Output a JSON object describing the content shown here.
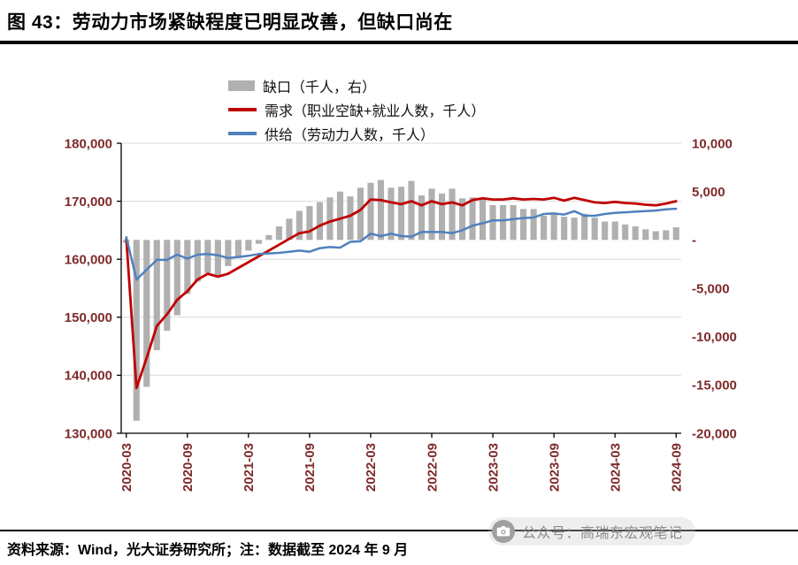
{
  "title": "图 43：劳动力市场紧缺程度已明显改善，但缺口尚在",
  "footer": {
    "source_note": "资料来源：Wind，光大证券研究所；注：数据截至 2024 年 9 月"
  },
  "watermark": {
    "icon": "camera-icon",
    "text": "公众号：高瑞东宏观笔记"
  },
  "colors": {
    "bar": "#b0b0b0",
    "demand": "#c00000",
    "supply": "#4f81bd",
    "gridline": "#d9d9d9",
    "axis_line": "#000000",
    "axis_label": "#7f2a2a"
  },
  "chart_data": {
    "type": "bar+line combo",
    "title": "图 43：劳动力市场紧缺程度已明显改善，但缺口尚在",
    "legend_position": "top",
    "grid": "horizontal",
    "x": [
      "2020-03",
      "2020-04",
      "2020-05",
      "2020-06",
      "2020-07",
      "2020-08",
      "2020-09",
      "2020-10",
      "2020-11",
      "2020-12",
      "2021-01",
      "2021-02",
      "2021-03",
      "2021-04",
      "2021-05",
      "2021-06",
      "2021-07",
      "2021-08",
      "2021-09",
      "2021-10",
      "2021-11",
      "2021-12",
      "2022-01",
      "2022-02",
      "2022-03",
      "2022-04",
      "2022-05",
      "2022-06",
      "2022-07",
      "2022-08",
      "2022-09",
      "2022-10",
      "2022-11",
      "2022-12",
      "2023-01",
      "2023-02",
      "2023-03",
      "2023-04",
      "2023-05",
      "2023-06",
      "2023-07",
      "2023-08",
      "2023-09",
      "2023-10",
      "2023-11",
      "2023-12",
      "2024-01",
      "2024-02",
      "2024-03",
      "2024-04",
      "2024-05",
      "2024-06",
      "2024-07",
      "2024-08",
      "2024-09"
    ],
    "x_tick_labels": [
      "2020-03",
      "2020-09",
      "2021-03",
      "2021-09",
      "2022-03",
      "2022-09",
      "2023-03",
      "2023-09",
      "2024-03",
      "2024-09"
    ],
    "x_tick_every": 6,
    "left_axis": {
      "min": 130000,
      "max": 180000,
      "step": 10000,
      "tick_values": [
        130000,
        140000,
        150000,
        160000,
        170000,
        180000
      ],
      "tick_labels": [
        "130,000",
        "140,000",
        "150,000",
        "160,000",
        "170,000",
        "180,000"
      ]
    },
    "right_axis": {
      "min": -20000,
      "max": 10000,
      "step": 5000,
      "tick_values": [
        10000,
        5000,
        0,
        -5000,
        -10000,
        -15000,
        -20000
      ],
      "tick_labels": [
        "10,000",
        "5,000",
        "-",
        "-5,000",
        "-10,000",
        "-15,000",
        "-20,000"
      ]
    },
    "series": [
      {
        "id": "gap",
        "name": "缺口（千人，右）",
        "type": "bar",
        "axis": "right",
        "color": "#b0b0b0",
        "values": [
          -300,
          -18700,
          -15200,
          -11400,
          -9400,
          -7800,
          -5600,
          -4300,
          -3400,
          -3700,
          -2700,
          -1900,
          -1100,
          -400,
          500,
          1400,
          2200,
          3000,
          3500,
          3900,
          4400,
          5000,
          4500,
          5400,
          5900,
          6200,
          5400,
          5500,
          6100,
          4600,
          5300,
          4800,
          5300,
          4300,
          4400,
          4300,
          3600,
          3600,
          3600,
          3200,
          3200,
          2500,
          2700,
          2400,
          2300,
          2700,
          2300,
          1900,
          1900,
          1600,
          1400,
          1100,
          900,
          1000,
          1300
        ]
      },
      {
        "id": "demand",
        "name": "需求（职业空缺+就业人数，千人）",
        "type": "line",
        "axis": "left",
        "color": "#c00000",
        "width": 2.8,
        "values": [
          163500,
          137800,
          143000,
          148500,
          150500,
          153000,
          154500,
          156500,
          157500,
          157000,
          157500,
          158500,
          159500,
          160500,
          161500,
          162500,
          163500,
          164500,
          164800,
          165800,
          166500,
          167000,
          167500,
          168500,
          170300,
          170200,
          169800,
          169500,
          170000,
          169300,
          170000,
          169500,
          169800,
          169300,
          170200,
          170500,
          170300,
          170300,
          170500,
          170300,
          170400,
          170300,
          170600,
          170100,
          170600,
          170200,
          169800,
          169700,
          169900,
          169700,
          169600,
          169400,
          169300,
          169600,
          170000
        ]
      },
      {
        "id": "supply",
        "name": "供给（劳动力人数，千人）",
        "type": "line",
        "axis": "left",
        "color": "#4f81bd",
        "width": 2.5,
        "values": [
          163800,
          156500,
          158200,
          159900,
          159900,
          160800,
          160100,
          160800,
          160900,
          160700,
          160200,
          160400,
          160600,
          160900,
          161000,
          161100,
          161300,
          161500,
          161300,
          161900,
          162100,
          162000,
          163000,
          163100,
          164400,
          164000,
          164400,
          164000,
          163900,
          164700,
          164700,
          164700,
          164500,
          165000,
          165800,
          166200,
          166700,
          166700,
          166900,
          167100,
          167200,
          167800,
          167900,
          167700,
          168300,
          167500,
          167500,
          167800,
          168000,
          168100,
          168200,
          168300,
          168400,
          168600,
          168700
        ]
      }
    ]
  }
}
